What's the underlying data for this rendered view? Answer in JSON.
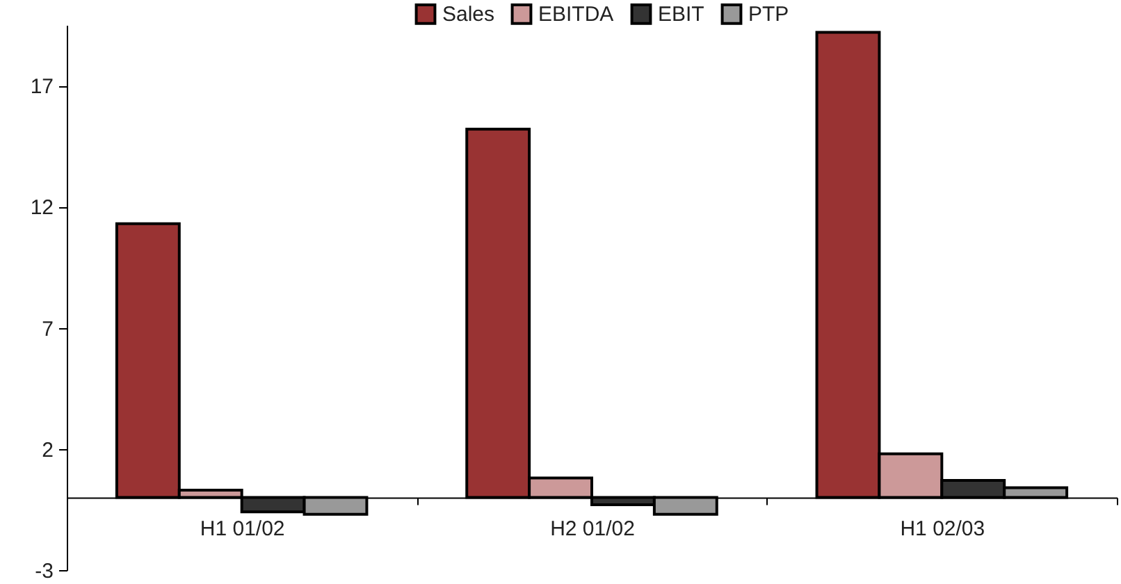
{
  "chart_data": {
    "type": "bar",
    "categories": [
      "H1 01/02",
      "H2 01/02",
      "H1 02/03"
    ],
    "series": [
      {
        "name": "Sales",
        "color": "#993333",
        "values": [
          11.3,
          15.2,
          19.2
        ]
      },
      {
        "name": "EBITDA",
        "color": "#cc9999",
        "values": [
          0.3,
          0.8,
          1.8
        ]
      },
      {
        "name": "EBIT",
        "color": "#333333",
        "values": [
          -0.6,
          -0.3,
          0.7
        ]
      },
      {
        "name": "PTP",
        "color": "#999999",
        "values": [
          -0.7,
          -0.7,
          0.4
        ]
      }
    ],
    "ylim": [
      -3,
      19.5
    ],
    "yticks": [
      -3,
      2,
      7,
      12,
      17
    ],
    "grid": false,
    "legend": "top"
  }
}
